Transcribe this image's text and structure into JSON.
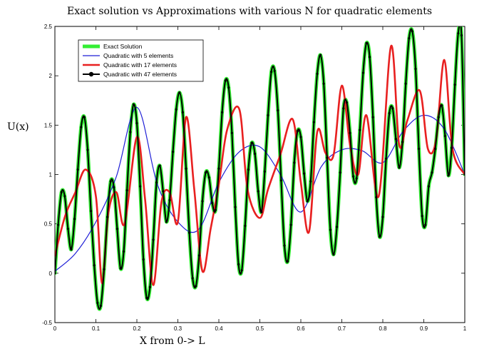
{
  "chart_data": {
    "type": "line",
    "title": "Exact solution vs Approximations with various N for quadratic elements",
    "xlabel": "X from 0-> L",
    "ylabel": "U(x)",
    "xlim": [
      0,
      1
    ],
    "ylim": [
      -0.5,
      2.5
    ],
    "xticks": [
      "0",
      "0.1",
      "0.2",
      "0.3",
      "0.4",
      "0.5",
      "0.6",
      "0.7",
      "0.8",
      "0.9",
      "1"
    ],
    "yticks": [
      "-0.5",
      "0",
      "0.5",
      "1",
      "1.5",
      "2",
      "2.5"
    ],
    "grid": false,
    "legend_position": "top-left",
    "series": [
      {
        "name": "Exact Solution",
        "color": "#33ee33",
        "x": [
          0,
          0.008,
          0.016,
          0.024,
          0.032,
          0.04,
          0.048,
          0.056,
          0.064,
          0.072,
          0.08,
          0.088,
          0.096,
          0.104,
          0.112,
          0.12,
          0.128,
          0.136,
          0.144,
          0.152,
          0.16,
          0.168,
          0.176,
          0.184,
          0.192,
          0.2,
          0.208,
          0.216,
          0.224,
          0.232,
          0.24,
          0.248,
          0.256,
          0.264,
          0.272,
          0.28,
          0.288,
          0.296,
          0.304,
          0.312,
          0.32,
          0.328,
          0.336,
          0.344,
          0.352,
          0.36,
          0.368,
          0.376,
          0.384,
          0.392,
          0.4,
          0.408,
          0.416,
          0.424,
          0.432,
          0.44,
          0.448,
          0.456,
          0.464,
          0.472,
          0.48,
          0.488,
          0.496,
          0.504,
          0.512,
          0.52,
          0.528,
          0.536,
          0.544,
          0.552,
          0.56,
          0.568,
          0.576,
          0.584,
          0.592,
          0.6,
          0.608,
          0.616,
          0.624,
          0.632,
          0.64,
          0.648,
          0.656,
          0.664,
          0.672,
          0.68,
          0.688,
          0.696,
          0.704,
          0.712,
          0.72,
          0.728,
          0.736,
          0.744,
          0.752,
          0.76,
          0.768,
          0.776,
          0.784,
          0.792,
          0.8,
          0.808,
          0.816,
          0.824,
          0.832,
          0.84,
          0.848,
          0.856,
          0.864,
          0.872,
          0.88,
          0.888,
          0.896,
          0.904,
          0.912,
          0.92,
          0.928,
          0.936,
          0.944,
          0.952,
          0.96,
          0.968,
          0.976,
          0.984,
          0.992,
          1.0
        ],
        "y": [
          0.0,
          0.49,
          0.82,
          0.78,
          0.45,
          0.24,
          0.55,
          1.05,
          1.48,
          1.58,
          1.25,
          0.63,
          0.08,
          -0.3,
          -0.33,
          0.04,
          0.57,
          0.93,
          0.87,
          0.45,
          0.05,
          0.22,
          0.84,
          1.43,
          1.71,
          1.52,
          0.88,
          0.14,
          -0.25,
          -0.14,
          0.34,
          0.92,
          1.09,
          0.83,
          0.52,
          0.74,
          1.23,
          1.66,
          1.83,
          1.63,
          1.06,
          0.41,
          -0.05,
          -0.13,
          0.18,
          0.73,
          1.02,
          0.97,
          0.71,
          0.64,
          1.06,
          1.63,
          1.95,
          1.88,
          1.42,
          0.67,
          0.09,
          0.03,
          0.48,
          1.05,
          1.32,
          1.21,
          0.83,
          0.62,
          1.03,
          1.6,
          2.04,
          2.05,
          1.65,
          0.94,
          0.28,
          0.12,
          0.49,
          1.12,
          1.44,
          1.38,
          1.01,
          0.73,
          0.93,
          1.53,
          2.02,
          2.21,
          1.92,
          1.17,
          0.44,
          0.19,
          0.47,
          1.02,
          1.67,
          1.73,
          1.42,
          0.98,
          0.96,
          1.45,
          2.03,
          2.33,
          2.19,
          1.58,
          0.77,
          0.37,
          0.57,
          1.16,
          1.62,
          1.67,
          1.36,
          1.07,
          1.33,
          1.92,
          2.38,
          2.45,
          2.07,
          1.26,
          0.58,
          0.49,
          0.88,
          1.02,
          1.26,
          1.58,
          1.7,
          1.39,
          0.99,
          1.27,
          1.91,
          2.43,
          2.41,
          1.0
        ]
      },
      {
        "name": "Quadratic with 5 elements",
        "color": "#1f1fd6",
        "x": [
          0,
          0.05,
          0.1,
          0.15,
          0.2,
          0.25,
          0.3,
          0.35,
          0.4,
          0.45,
          0.5,
          0.55,
          0.6,
          0.65,
          0.7,
          0.75,
          0.8,
          0.85,
          0.9,
          0.95,
          1.0
        ],
        "y": [
          0.02,
          0.2,
          0.52,
          0.98,
          1.68,
          0.9,
          0.52,
          0.44,
          0.92,
          1.23,
          1.28,
          1.0,
          0.62,
          1.08,
          1.25,
          1.24,
          1.12,
          1.44,
          1.6,
          1.46,
          1.0
        ]
      },
      {
        "name": "Quadratic with 17 elements",
        "color": "#e82020",
        "x": [
          0,
          0.025,
          0.05,
          0.075,
          0.1,
          0.115,
          0.13,
          0.15,
          0.17,
          0.2,
          0.22,
          0.24,
          0.26,
          0.28,
          0.3,
          0.32,
          0.34,
          0.36,
          0.38,
          0.4,
          0.42,
          0.45,
          0.47,
          0.5,
          0.52,
          0.55,
          0.58,
          0.6,
          0.62,
          0.64,
          0.66,
          0.68,
          0.7,
          0.72,
          0.74,
          0.76,
          0.79,
          0.82,
          0.84,
          0.86,
          0.89,
          0.91,
          0.93,
          0.95,
          0.97,
          1.0
        ],
        "y": [
          0.18,
          0.58,
          0.82,
          1.05,
          0.78,
          -0.1,
          0.6,
          0.82,
          0.5,
          1.38,
          0.75,
          -0.12,
          0.72,
          0.82,
          0.52,
          1.58,
          0.85,
          0.02,
          0.45,
          0.9,
          1.45,
          1.66,
          0.85,
          0.56,
          0.85,
          1.2,
          1.56,
          0.92,
          0.42,
          1.43,
          1.22,
          1.2,
          1.9,
          1.3,
          1.0,
          1.6,
          0.78,
          2.3,
          1.3,
          1.55,
          1.85,
          1.26,
          1.35,
          2.16,
          1.26,
          1.0
        ]
      },
      {
        "name": "Quadratic with 47 elements",
        "color": "#000000",
        "x": [
          0,
          0.008,
          0.016,
          0.024,
          0.032,
          0.04,
          0.048,
          0.056,
          0.064,
          0.072,
          0.08,
          0.088,
          0.096,
          0.104,
          0.112,
          0.12,
          0.128,
          0.136,
          0.144,
          0.152,
          0.16,
          0.168,
          0.176,
          0.184,
          0.192,
          0.2,
          0.208,
          0.216,
          0.224,
          0.232,
          0.24,
          0.248,
          0.256,
          0.264,
          0.272,
          0.28,
          0.288,
          0.296,
          0.304,
          0.312,
          0.32,
          0.328,
          0.336,
          0.344,
          0.352,
          0.36,
          0.368,
          0.376,
          0.384,
          0.392,
          0.4,
          0.408,
          0.416,
          0.424,
          0.432,
          0.44,
          0.448,
          0.456,
          0.464,
          0.472,
          0.48,
          0.488,
          0.496,
          0.504,
          0.512,
          0.52,
          0.528,
          0.536,
          0.544,
          0.552,
          0.56,
          0.568,
          0.576,
          0.584,
          0.592,
          0.6,
          0.608,
          0.616,
          0.624,
          0.632,
          0.64,
          0.648,
          0.656,
          0.664,
          0.672,
          0.68,
          0.688,
          0.696,
          0.704,
          0.712,
          0.72,
          0.728,
          0.736,
          0.744,
          0.752,
          0.76,
          0.768,
          0.776,
          0.784,
          0.792,
          0.8,
          0.808,
          0.816,
          0.824,
          0.832,
          0.84,
          0.848,
          0.856,
          0.864,
          0.872,
          0.88,
          0.888,
          0.896,
          0.904,
          0.912,
          0.92,
          0.928,
          0.936,
          0.944,
          0.952,
          0.96,
          0.968,
          0.976,
          0.984,
          0.992,
          1.0
        ],
        "y": [
          0.0,
          0.49,
          0.82,
          0.78,
          0.45,
          0.24,
          0.55,
          1.05,
          1.48,
          1.58,
          1.25,
          0.63,
          0.08,
          -0.3,
          -0.33,
          0.04,
          0.57,
          0.93,
          0.87,
          0.45,
          0.05,
          0.22,
          0.84,
          1.43,
          1.71,
          1.52,
          0.88,
          0.14,
          -0.25,
          -0.14,
          0.34,
          0.92,
          1.09,
          0.83,
          0.52,
          0.74,
          1.23,
          1.66,
          1.83,
          1.63,
          1.06,
          0.41,
          -0.05,
          -0.13,
          0.18,
          0.73,
          1.02,
          0.97,
          0.71,
          0.64,
          1.06,
          1.63,
          1.95,
          1.88,
          1.42,
          0.67,
          0.09,
          0.03,
          0.48,
          1.05,
          1.32,
          1.21,
          0.83,
          0.62,
          1.03,
          1.6,
          2.04,
          2.05,
          1.65,
          0.94,
          0.28,
          0.12,
          0.49,
          1.12,
          1.44,
          1.38,
          1.01,
          0.73,
          0.93,
          1.53,
          2.02,
          2.21,
          1.92,
          1.17,
          0.44,
          0.19,
          0.47,
          1.02,
          1.67,
          1.73,
          1.42,
          0.98,
          0.96,
          1.45,
          2.03,
          2.33,
          2.19,
          1.58,
          0.77,
          0.37,
          0.57,
          1.16,
          1.62,
          1.67,
          1.36,
          1.07,
          1.33,
          1.92,
          2.38,
          2.45,
          2.07,
          1.26,
          0.58,
          0.49,
          0.88,
          1.02,
          1.26,
          1.58,
          1.7,
          1.39,
          0.99,
          1.27,
          1.91,
          2.43,
          2.41,
          1.0
        ]
      }
    ]
  }
}
